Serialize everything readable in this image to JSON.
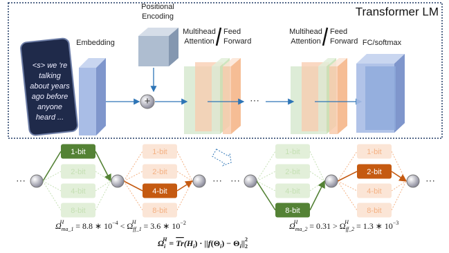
{
  "title": "Transformer LM",
  "input_text": [
    "<s> we 're",
    "talking",
    "about years",
    "ago before",
    "anyone",
    "heard ..."
  ],
  "blocks": {
    "embedding": "Embedding",
    "positional_encoding": [
      "Positional",
      "Encoding"
    ],
    "layer_1": {
      "attention": [
        "Multihead",
        "Attention"
      ],
      "feed_forward": [
        "Feed",
        "Forward"
      ]
    },
    "layer_2": {
      "attention": [
        "Multihead",
        "Attention"
      ],
      "feed_forward": [
        "Feed",
        "Forward"
      ]
    },
    "output": "FC/softmax"
  },
  "ellipses": [
    "···",
    "···",
    "···",
    "···",
    "···"
  ],
  "bit_groups": [
    [
      "1-bit",
      "2-bit",
      "4-bit",
      "8-bit"
    ],
    [
      "1-bit",
      "2-bit",
      "4-bit",
      "8-bit"
    ],
    [
      "1-bit",
      "2-bit",
      "4-bit",
      "8-bit"
    ],
    [
      "1-bit",
      "2-bit",
      "4-bit",
      "8-bit"
    ]
  ],
  "formulas": [
    [
      "Ω",
      "ma_1",
      "H",
      " = 8.8 ∗ 10",
      "−4",
      " < Ω",
      "ff_1",
      "H",
      " = 3.6 ∗ 10",
      "−2"
    ],
    [
      "Ω",
      "ma_2",
      "H",
      " = 0.31 > Ω",
      "ff_2",
      "H",
      " = 1.3 ∗ 10",
      "−3"
    ],
    [
      "Ω",
      "i",
      "H",
      " = ",
      "Tr",
      "(H",
      "i",
      ") · ||",
      "f",
      "(Θ",
      "i",
      ") − Θ",
      "i",
      "||",
      "2",
      "2"
    ]
  ]
}
